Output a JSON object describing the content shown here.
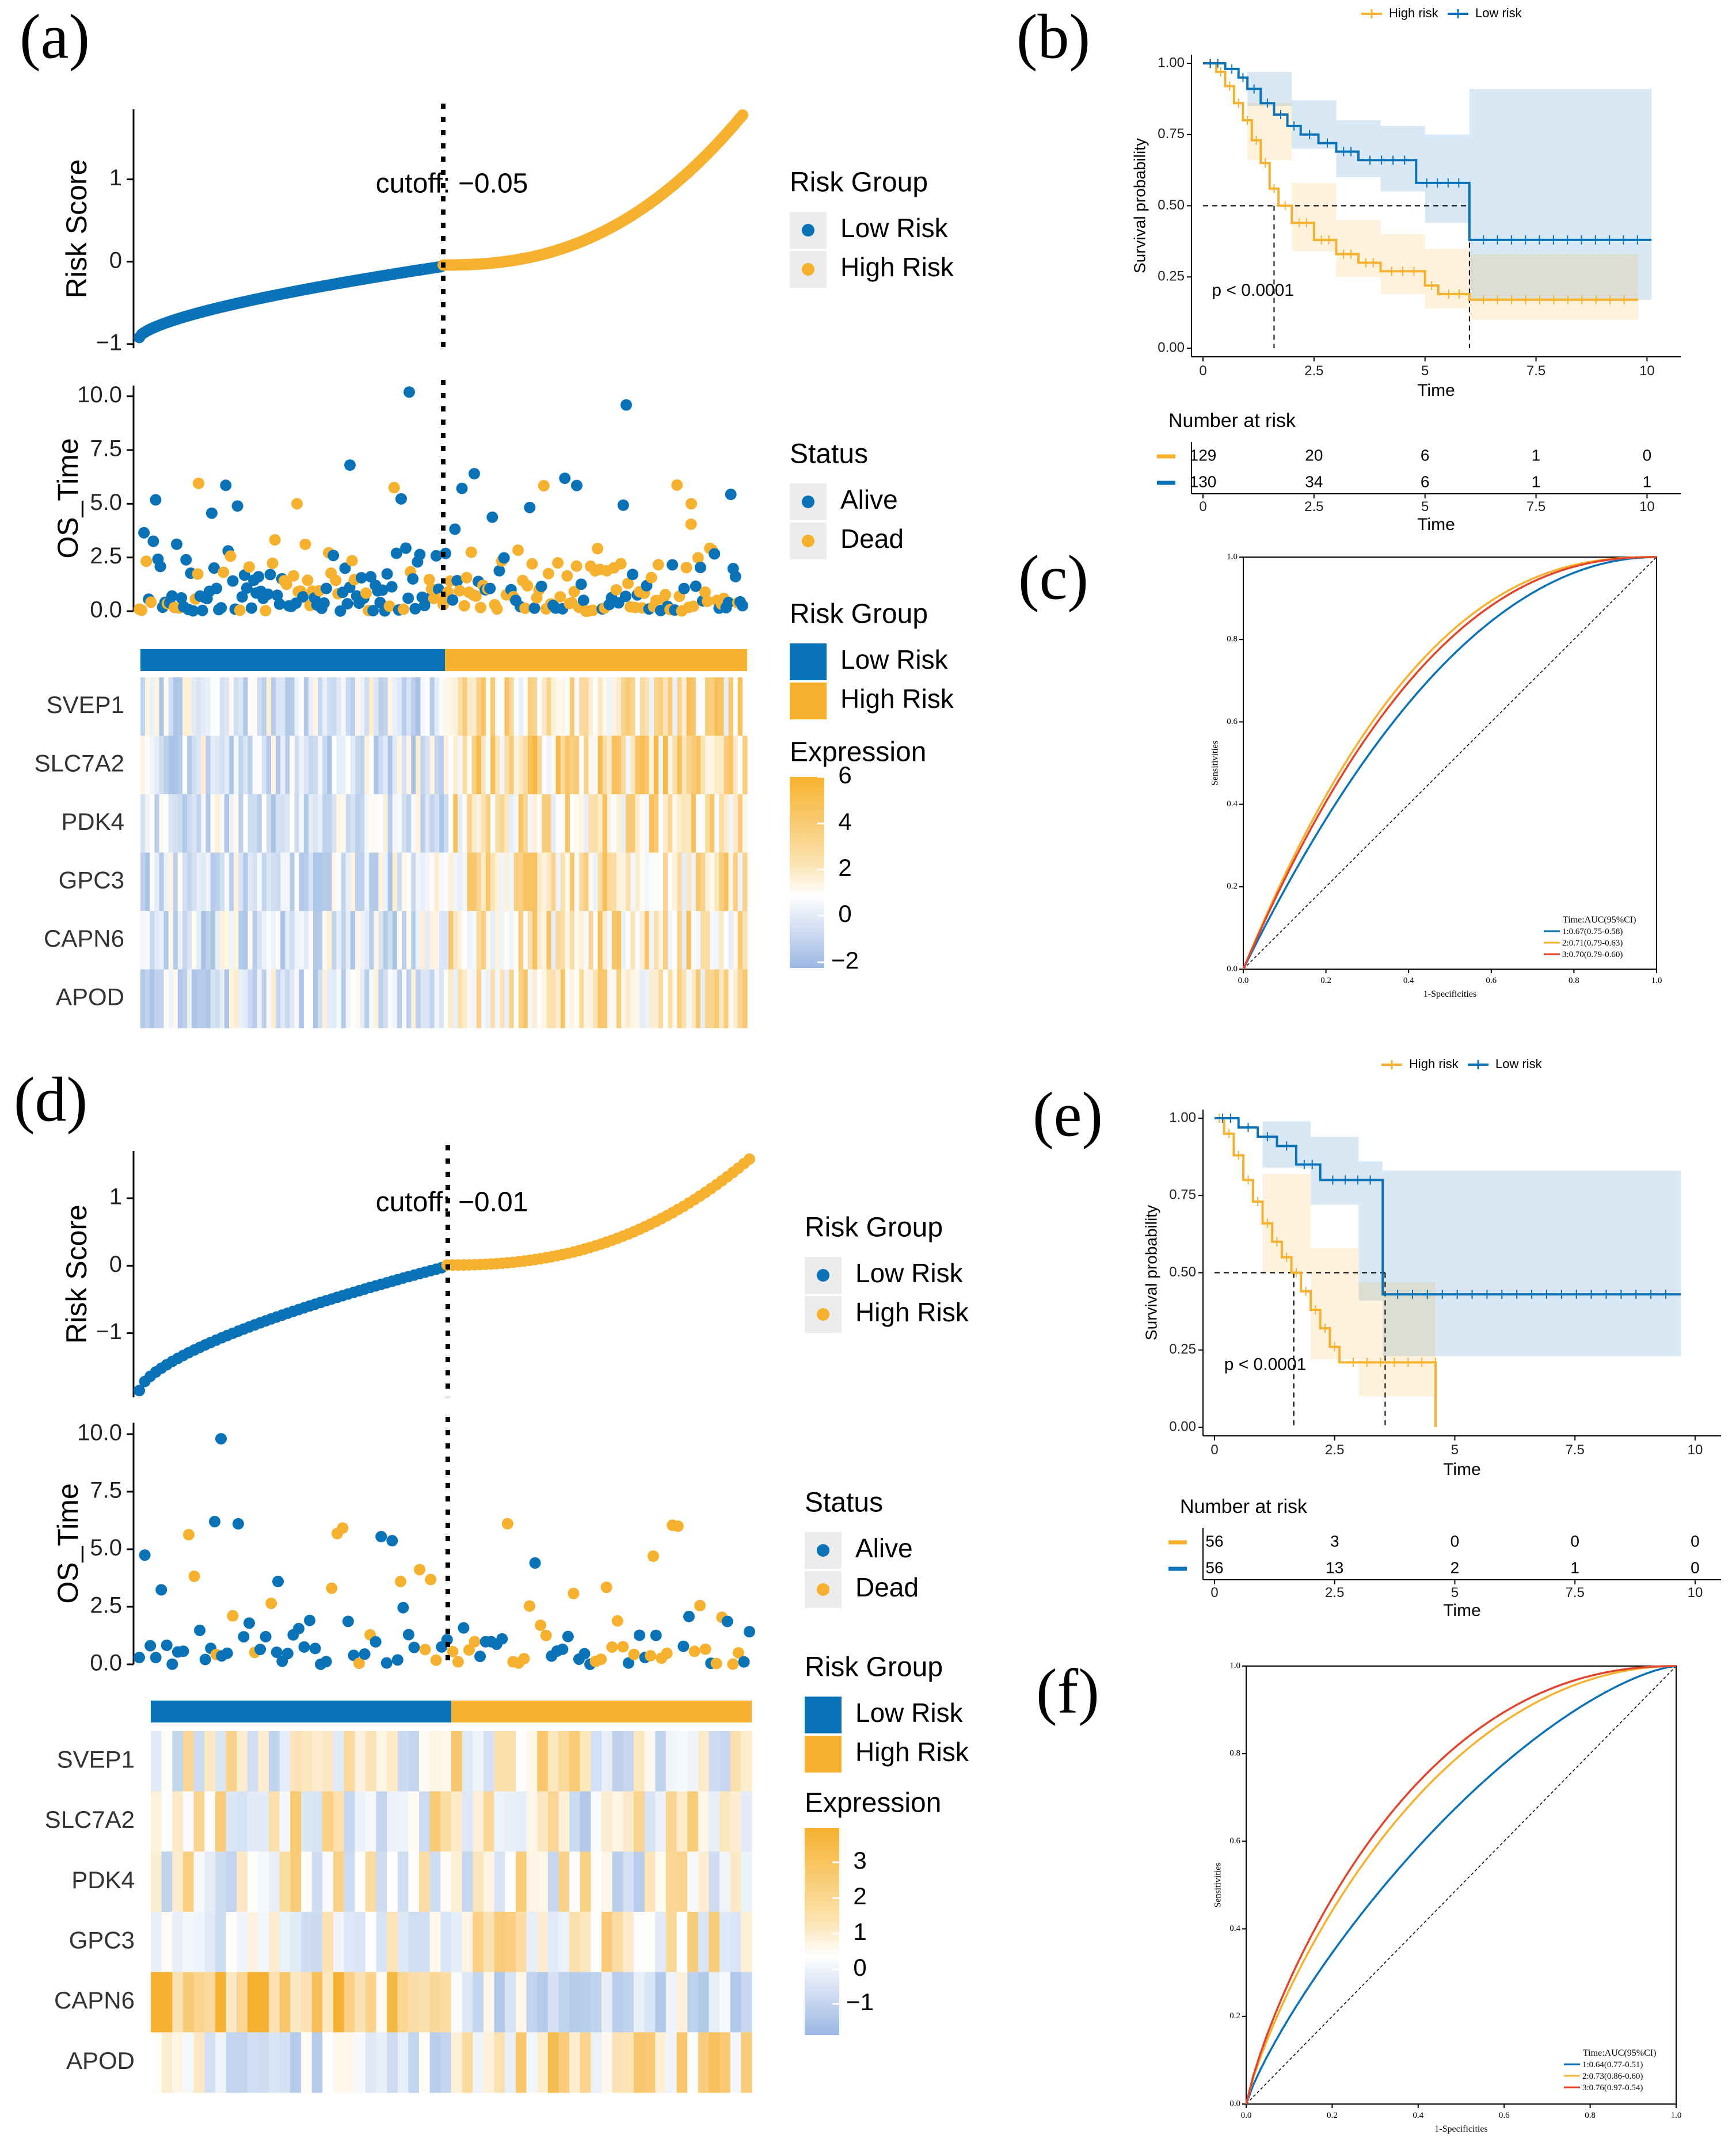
{
  "colors": {
    "low": "#0a73b8",
    "high": "#f6b12e",
    "roc3": "#e3452c",
    "axis": "#000000"
  },
  "panel_labels": [
    "(a)",
    "(b)",
    "(c)",
    "(d)",
    "(e)",
    "(f)"
  ],
  "chart_data": [
    {
      "id": "a",
      "type": "scatter",
      "subtype": "risk-score-curve",
      "ylabel": "Risk Score",
      "yticks": [
        -1,
        0,
        1
      ],
      "ylim": [
        -1.05,
        1.85
      ],
      "cutoff_label": "cutoff: −0.05",
      "cutoff_index": 130,
      "n": 259,
      "low_range": [
        -0.92,
        -0.06
      ],
      "high_range": [
        -0.04,
        1.78
      ],
      "legend": {
        "title": "Risk Group",
        "items": [
          "Low Risk",
          "High Risk"
        ]
      }
    },
    {
      "id": "a2",
      "type": "scatter",
      "subtype": "os-time",
      "ylabel": "OS_Time",
      "yticks": [
        "0.0",
        "2.5",
        "5.0",
        "7.5",
        "10.0"
      ],
      "ylim": [
        0,
        10.5
      ],
      "legend": {
        "title": "Status",
        "items": [
          "Alive",
          "Dead"
        ]
      }
    },
    {
      "id": "a3",
      "type": "heatmap",
      "annotation": {
        "title": "Risk Group",
        "items": [
          "Low Risk",
          "High Risk"
        ]
      },
      "genes": [
        "SVEP1",
        "SLC7A2",
        "PDK4",
        "GPC3",
        "CAPN6",
        "APOD"
      ],
      "colorbar": {
        "title": "Expression",
        "ticks": [
          "6",
          "4",
          "2",
          "0",
          "−2"
        ],
        "range": [
          -2,
          6
        ]
      },
      "columns": 130
    },
    {
      "id": "b",
      "type": "line",
      "subtype": "kaplan-meier",
      "legend": [
        "High risk",
        "Low risk"
      ],
      "xlabel": "Time",
      "ylabel": "Survival probability",
      "xticks": [
        "0",
        "2.5",
        "5",
        "7.5",
        "10"
      ],
      "yticks": [
        "0.00",
        "0.25",
        "0.50",
        "0.75",
        "1.00"
      ],
      "xlim": [
        0,
        10.5
      ],
      "ylim": [
        0,
        1
      ],
      "pvalue": "p < 0.0001",
      "median_high": 1.6,
      "median_low": 6.0,
      "series": [
        {
          "name": "High risk",
          "steps": [
            [
              0,
              1
            ],
            [
              0.3,
              0.97
            ],
            [
              0.5,
              0.92
            ],
            [
              0.7,
              0.86
            ],
            [
              0.9,
              0.8
            ],
            [
              1.1,
              0.73
            ],
            [
              1.3,
              0.65
            ],
            [
              1.5,
              0.56
            ],
            [
              1.7,
              0.5
            ],
            [
              2.0,
              0.44
            ],
            [
              2.5,
              0.38
            ],
            [
              3.0,
              0.33
            ],
            [
              3.5,
              0.3
            ],
            [
              4.0,
              0.27
            ],
            [
              5.0,
              0.22
            ],
            [
              5.3,
              0.19
            ],
            [
              6.0,
              0.17
            ],
            [
              9.8,
              0.17
            ]
          ],
          "ci_upper": [
            [
              0,
              1
            ],
            [
              1,
              0.86
            ],
            [
              2,
              0.58
            ],
            [
              3,
              0.45
            ],
            [
              4,
              0.4
            ],
            [
              5,
              0.35
            ],
            [
              6,
              0.33
            ],
            [
              9.8,
              0.33
            ]
          ],
          "ci_lower": [
            [
              0,
              1
            ],
            [
              1,
              0.66
            ],
            [
              2,
              0.34
            ],
            [
              3,
              0.25
            ],
            [
              4,
              0.19
            ],
            [
              5,
              0.14
            ],
            [
              6,
              0.1
            ],
            [
              9.8,
              0.07
            ]
          ]
        },
        {
          "name": "Low risk",
          "steps": [
            [
              0,
              1
            ],
            [
              0.5,
              0.98
            ],
            [
              0.8,
              0.95
            ],
            [
              1.0,
              0.91
            ],
            [
              1.3,
              0.86
            ],
            [
              1.6,
              0.82
            ],
            [
              1.9,
              0.78
            ],
            [
              2.2,
              0.75
            ],
            [
              2.6,
              0.72
            ],
            [
              3.0,
              0.69
            ],
            [
              3.5,
              0.66
            ],
            [
              4.8,
              0.58
            ],
            [
              6.0,
              0.38
            ],
            [
              10.1,
              0.38
            ]
          ],
          "ci_upper": [
            [
              0,
              1
            ],
            [
              1,
              0.97
            ],
            [
              2,
              0.87
            ],
            [
              3,
              0.8
            ],
            [
              4,
              0.78
            ],
            [
              5,
              0.75
            ],
            [
              6,
              0.91
            ],
            [
              10.1,
              0.91
            ]
          ],
          "ci_lower": [
            [
              0,
              1
            ],
            [
              1,
              0.85
            ],
            [
              2,
              0.7
            ],
            [
              3,
              0.6
            ],
            [
              4,
              0.55
            ],
            [
              5,
              0.44
            ],
            [
              6,
              0.17
            ],
            [
              10.1,
              0.17
            ]
          ]
        }
      ],
      "risk_table": {
        "title": "Number at risk",
        "rows": [
          [
            "129",
            "20",
            "6",
            "1",
            "0"
          ],
          [
            "130",
            "34",
            "6",
            "1",
            "1"
          ]
        ],
        "xlabel": "Time"
      }
    },
    {
      "id": "c",
      "type": "line",
      "subtype": "roc",
      "xlabel": "1-Specificities",
      "ylabel": "Sensitivities",
      "ticks": [
        "0.0",
        "0.2",
        "0.4",
        "0.6",
        "0.8",
        "1.0"
      ],
      "legend_title": "Time:AUC(95%CI)",
      "series": [
        {
          "name": "1:0.67(0.75-0.58)",
          "auc": 0.67
        },
        {
          "name": "2:0.71(0.79-0.63)",
          "auc": 0.71
        },
        {
          "name": "3:0.70(0.79-0.60)",
          "auc": 0.7
        }
      ]
    },
    {
      "id": "d",
      "type": "scatter",
      "subtype": "risk-score-curve",
      "ylabel": "Risk Score",
      "yticks": [
        -1,
        0,
        1
      ],
      "ylim": [
        -1.95,
        1.7
      ],
      "cutoff_label": "cutoff: −0.01",
      "cutoff_index": 56,
      "n": 112,
      "low_range": [
        -1.85,
        -0.03
      ],
      "high_range": [
        0.01,
        1.58
      ],
      "legend": {
        "title": "Risk Group",
        "items": [
          "Low Risk",
          "High Risk"
        ]
      }
    },
    {
      "id": "d2",
      "type": "scatter",
      "subtype": "os-time",
      "ylabel": "OS_Time",
      "yticks": [
        "0.0",
        "2.5",
        "5.0",
        "7.5",
        "10.0"
      ],
      "ylim": [
        0,
        10.5
      ],
      "legend": {
        "title": "Status",
        "items": [
          "Alive",
          "Dead"
        ]
      }
    },
    {
      "id": "d3",
      "type": "heatmap",
      "annotation": {
        "title": "Risk Group",
        "items": [
          "Low Risk",
          "High Risk"
        ]
      },
      "genes": [
        "SVEP1",
        "SLC7A2",
        "PDK4",
        "GPC3",
        "CAPN6",
        "APOD"
      ],
      "colorbar": {
        "title": "Expression",
        "ticks": [
          "3",
          "2",
          "1",
          "0",
          "−1"
        ],
        "range": [
          -1.5,
          3.5
        ]
      },
      "columns": 56
    },
    {
      "id": "e",
      "type": "line",
      "subtype": "kaplan-meier",
      "legend": [
        "High risk",
        "Low risk"
      ],
      "xlabel": "Time",
      "ylabel": "Survival probability",
      "xticks": [
        "0",
        "2.5",
        "5",
        "7.5",
        "10"
      ],
      "yticks": [
        "0.00",
        "0.25",
        "0.50",
        "0.75",
        "1.00"
      ],
      "xlim": [
        0,
        10.3
      ],
      "ylim": [
        0,
        1
      ],
      "pvalue": "p < 0.0001",
      "median_high": 1.65,
      "median_low": 3.55,
      "series": [
        {
          "name": "High risk",
          "steps": [
            [
              0,
              1
            ],
            [
              0.2,
              0.95
            ],
            [
              0.4,
              0.88
            ],
            [
              0.6,
              0.8
            ],
            [
              0.8,
              0.73
            ],
            [
              1.0,
              0.66
            ],
            [
              1.2,
              0.6
            ],
            [
              1.4,
              0.55
            ],
            [
              1.6,
              0.5
            ],
            [
              1.8,
              0.44
            ],
            [
              2.0,
              0.38
            ],
            [
              2.2,
              0.32
            ],
            [
              2.4,
              0.26
            ],
            [
              2.6,
              0.21
            ],
            [
              4.6,
              0.21
            ],
            [
              4.6,
              0.0
            ]
          ],
          "ci_upper": [
            [
              0,
              1
            ],
            [
              1,
              0.82
            ],
            [
              2,
              0.58
            ],
            [
              3,
              0.47
            ],
            [
              4.6,
              0.47
            ]
          ],
          "ci_lower": [
            [
              0,
              1
            ],
            [
              1,
              0.5
            ],
            [
              2,
              0.22
            ],
            [
              3,
              0.1
            ],
            [
              4.6,
              0.1
            ]
          ]
        },
        {
          "name": "Low risk",
          "steps": [
            [
              0,
              1
            ],
            [
              0.5,
              0.97
            ],
            [
              0.9,
              0.94
            ],
            [
              1.3,
              0.91
            ],
            [
              1.7,
              0.85
            ],
            [
              2.2,
              0.8
            ],
            [
              3.5,
              0.57
            ],
            [
              3.5,
              0.43
            ],
            [
              9.7,
              0.43
            ]
          ],
          "ci_upper": [
            [
              0,
              1
            ],
            [
              1,
              0.99
            ],
            [
              2,
              0.94
            ],
            [
              3,
              0.86
            ],
            [
              3.5,
              0.83
            ],
            [
              9.7,
              0.83
            ]
          ],
          "ci_lower": [
            [
              0,
              1
            ],
            [
              1,
              0.84
            ],
            [
              2,
              0.72
            ],
            [
              3,
              0.41
            ],
            [
              3.5,
              0.23
            ],
            [
              9.7,
              0.23
            ]
          ]
        }
      ],
      "risk_table": {
        "title": "Number at risk",
        "rows": [
          [
            "56",
            "3",
            "0",
            "0",
            "0"
          ],
          [
            "56",
            "13",
            "2",
            "1",
            "0"
          ]
        ],
        "xlabel": "Time"
      }
    },
    {
      "id": "f",
      "type": "line",
      "subtype": "roc",
      "xlabel": "1-Specificities",
      "ylabel": "Sensitivities",
      "ticks": [
        "0.0",
        "0.2",
        "0.4",
        "0.6",
        "0.8",
        "1.0"
      ],
      "legend_title": "Time:AUC(95%CI)",
      "series": [
        {
          "name": "1:0.64(0.77-0.51)",
          "auc": 0.64
        },
        {
          "name": "2:0.73(0.86-0.60)",
          "auc": 0.73
        },
        {
          "name": "3:0.76(0.97-0.54)",
          "auc": 0.76
        }
      ]
    }
  ]
}
